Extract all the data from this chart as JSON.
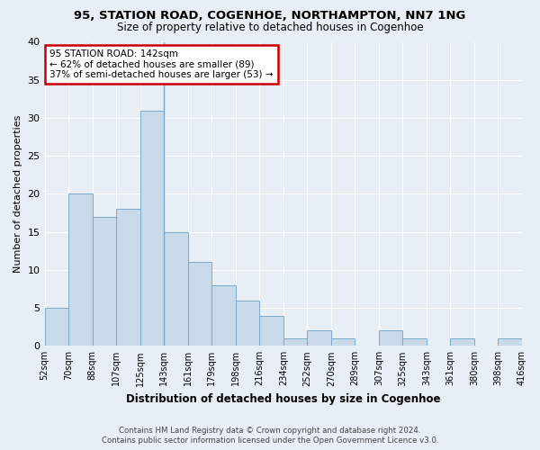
{
  "title": "95, STATION ROAD, COGENHOE, NORTHAMPTON, NN7 1NG",
  "subtitle": "Size of property relative to detached houses in Cogenhoe",
  "xlabel": "Distribution of detached houses by size in Cogenhoe",
  "ylabel": "Number of detached properties",
  "bar_values": [
    5,
    20,
    17,
    18,
    31,
    15,
    11,
    8,
    6,
    4,
    1,
    2,
    1,
    0,
    2,
    1,
    0,
    1,
    0,
    1
  ],
  "bin_labels": [
    "52sqm",
    "70sqm",
    "88sqm",
    "107sqm",
    "125sqm",
    "143sqm",
    "161sqm",
    "179sqm",
    "198sqm",
    "216sqm",
    "234sqm",
    "252sqm",
    "270sqm",
    "289sqm",
    "307sqm",
    "325sqm",
    "343sqm",
    "361sqm",
    "380sqm",
    "398sqm",
    "416sqm"
  ],
  "bar_color": "#c9daea",
  "bar_edge_color": "#7aaac8",
  "subject_bin_index": 4,
  "annotation_text_line1": "95 STATION ROAD: 142sqm",
  "annotation_text_line2": "← 62% of detached houses are smaller (89)",
  "annotation_text_line3": "37% of semi-detached houses are larger (53) →",
  "annotation_box_color": "#ffffff",
  "annotation_box_edge": "#cc0000",
  "ylim": [
    0,
    40
  ],
  "yticks": [
    0,
    5,
    10,
    15,
    20,
    25,
    30,
    35,
    40
  ],
  "footer_line1": "Contains HM Land Registry data © Crown copyright and database right 2024.",
  "footer_line2": "Contains public sector information licensed under the Open Government Licence v3.0.",
  "bg_color": "#e8eef5",
  "plot_bg_color": "#e8eef5",
  "grid_color": "#ffffff"
}
